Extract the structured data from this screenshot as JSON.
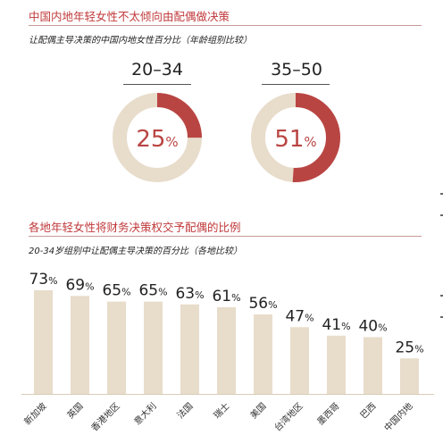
{
  "section1": {
    "title": "中国内地年轻女性不太倾向由配偶做决策",
    "subtitle": "让配偶主导决策的中国内地女性百分比（年龄组别比较）"
  },
  "section2": {
    "title": "各地年轻女性将财务决策权交予配偶的比例",
    "subtitle": "20-34岁组别中让配偶主导决策的百分比（各地比较）"
  },
  "colors": {
    "accent": "#b94543",
    "track": "#e8dccb",
    "bar": "#e8dccb",
    "title": "#c0393b"
  },
  "chart_data": [
    {
      "type": "pie",
      "categories": [
        "20–34",
        "35–50"
      ],
      "values": [
        25,
        51
      ],
      "unit": "%"
    },
    {
      "type": "bar",
      "categories": [
        "新加坡",
        "英国",
        "香港地区",
        "意大利",
        "法国",
        "瑞士",
        "美国",
        "台湾地区",
        "墨西哥",
        "巴西",
        "中国内地"
      ],
      "values": [
        73,
        69,
        65,
        65,
        63,
        61,
        56,
        47,
        41,
        40,
        25
      ],
      "unit": "%",
      "ylim": [
        0,
        100
      ]
    }
  ]
}
